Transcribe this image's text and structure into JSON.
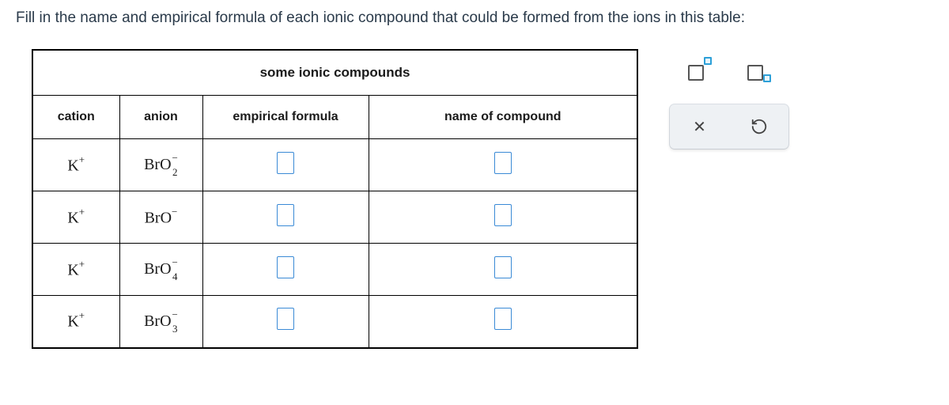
{
  "instruction": "Fill in the name and empirical formula of each ionic compound that could be formed from the ions in this table:",
  "table": {
    "title": "some ionic compounds",
    "headers": {
      "cation": "cation",
      "anion": "anion",
      "formula": "empirical formula",
      "name": "name of compound"
    },
    "rows": [
      {
        "cation_base": "K",
        "cation_charge": "+",
        "anion_base": "BrO",
        "anion_sub": "2",
        "anion_charge": "−"
      },
      {
        "cation_base": "K",
        "cation_charge": "+",
        "anion_base": "BrO",
        "anion_sub": "",
        "anion_charge": "−"
      },
      {
        "cation_base": "K",
        "cation_charge": "+",
        "anion_base": "BrO",
        "anion_sub": "4",
        "anion_charge": "−"
      },
      {
        "cation_base": "K",
        "cation_charge": "+",
        "anion_base": "BrO",
        "anion_sub": "3",
        "anion_charge": "−"
      }
    ]
  },
  "palette": {
    "superscript_tool": "superscript",
    "subscript_tool": "subscript",
    "clear": "×",
    "reset": "↺"
  },
  "colors": {
    "input_border": "#3a8ad6",
    "palette_bg": "#eef1f4",
    "text": "#1a1a1a",
    "instruction_text": "#2a3a4a"
  }
}
